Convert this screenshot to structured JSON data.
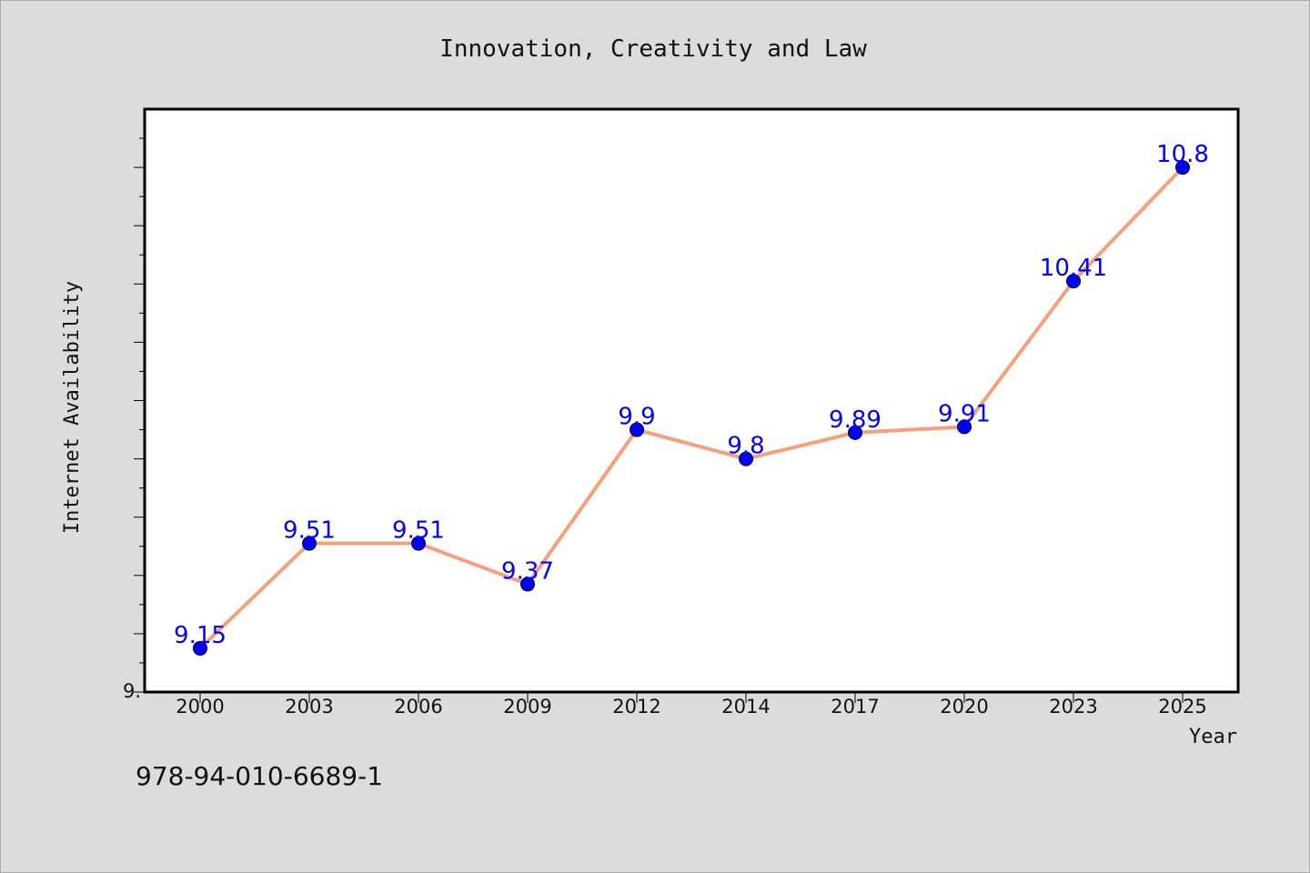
{
  "chart_data": {
    "type": "line",
    "title": "Innovation, Creativity and Law",
    "xlabel": "Year",
    "ylabel": "Internet Availability",
    "categories": [
      "2000",
      "2003",
      "2006",
      "2009",
      "2012",
      "2014",
      "2017",
      "2020",
      "2023",
      "2025"
    ],
    "series": [
      {
        "values": [
          9.15,
          9.51,
          9.51,
          9.37,
          9.9,
          9.8,
          9.89,
          9.91,
          10.41,
          10.8
        ]
      }
    ],
    "data_labels": [
      "9.15",
      "9.51",
      "9.51",
      "9.37",
      "9.9",
      "9.8",
      "9.89",
      "9.91",
      "10.41",
      "10.8"
    ],
    "ylim": [
      9.0,
      11.0
    ],
    "y_tick_labels": [
      {
        "value": 9.0,
        "label": "9."
      }
    ],
    "grid": false,
    "line_color": "#f5a07a",
    "marker_color": "#0000ff",
    "label_color": "#0000ff"
  },
  "footer_text": "978-94-010-6689-1"
}
